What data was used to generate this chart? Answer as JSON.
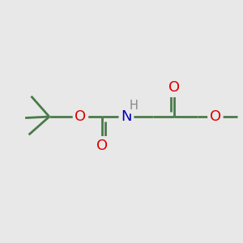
{
  "background_color": "#e8e8e8",
  "bond_color": "#4a7a4a",
  "atom_colors": {
    "O": "#dd0000",
    "N": "#0000bb",
    "H": "#888888",
    "C": "#4a7a4a"
  },
  "font_size_atom": 13.0,
  "font_size_H": 10.5,
  "line_width": 2.0,
  "figsize": [
    3.0,
    3.0
  ],
  "dpi": 100,
  "xlim": [
    0,
    10
  ],
  "ylim": [
    0,
    10
  ],
  "backbone_y": 5.2,
  "tbu_quat_x": 2.0,
  "tbu_quat_y": 5.2,
  "o1_x": 3.3,
  "o1_y": 5.2,
  "c1_x": 4.2,
  "c1_y": 5.2,
  "o2_x": 4.2,
  "o2_y": 4.0,
  "n_x": 5.2,
  "n_y": 5.2,
  "ch2a_x": 6.3,
  "ch2a_y": 5.2,
  "c2_x": 7.2,
  "c2_y": 5.2,
  "o3_x": 7.2,
  "o3_y": 6.4,
  "ch2b_x": 8.15,
  "ch2b_y": 5.2,
  "o4_x": 8.9,
  "o4_y": 5.2,
  "ch3_x": 9.8,
  "ch3_y": 5.2
}
